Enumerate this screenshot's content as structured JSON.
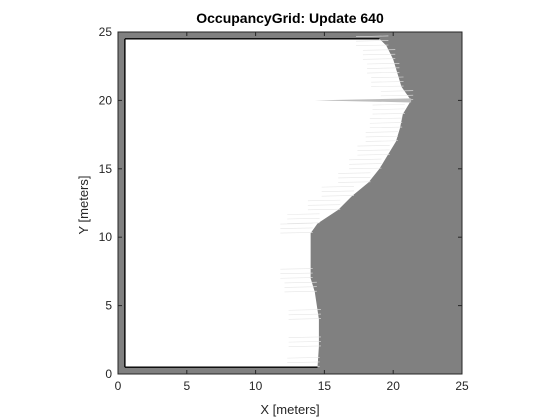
{
  "chart_data": {
    "type": "heatmap",
    "title": "OccupancyGrid: Update 640",
    "xlabel": "X [meters]",
    "ylabel": "Y [meters]",
    "xlim": [
      0,
      25
    ],
    "ylim": [
      0,
      25
    ],
    "xticks": [
      0,
      5,
      10,
      15,
      20,
      25
    ],
    "yticks": [
      0,
      5,
      10,
      15,
      20,
      25
    ],
    "colors": {
      "unknown": "#808080",
      "free": "#ffffff",
      "occupied": "#000000",
      "axis": "#262626"
    },
    "free_space_boundary": [
      {
        "y": 0.5,
        "x": 14.5
      },
      {
        "y": 2.0,
        "x": 14.6
      },
      {
        "y": 4.0,
        "x": 14.6
      },
      {
        "y": 6.0,
        "x": 14.3
      },
      {
        "y": 7.0,
        "x": 14.0
      },
      {
        "y": 10.3,
        "x": 14.0
      },
      {
        "y": 11.0,
        "x": 14.5
      },
      {
        "y": 12.0,
        "x": 16.0
      },
      {
        "y": 13.0,
        "x": 17.0
      },
      {
        "y": 14.0,
        "x": 18.2
      },
      {
        "y": 15.0,
        "x": 19.0
      },
      {
        "y": 16.0,
        "x": 19.6
      },
      {
        "y": 17.0,
        "x": 20.2
      },
      {
        "y": 18.0,
        "x": 20.5
      },
      {
        "y": 19.0,
        "x": 20.7
      },
      {
        "y": 20.0,
        "x": 21.3
      },
      {
        "y": 21.0,
        "x": 20.6
      },
      {
        "y": 22.0,
        "x": 20.3
      },
      {
        "y": 23.0,
        "x": 20.0
      },
      {
        "y": 24.0,
        "x": 19.5
      },
      {
        "y": 24.5,
        "x": 19.0
      }
    ],
    "walls": [
      {
        "x1": 0.5,
        "y1": 0.5,
        "x2": 14.5,
        "y2": 0.5
      },
      {
        "x1": 0.5,
        "y1": 0.5,
        "x2": 0.5,
        "y2": 24.5
      },
      {
        "x1": 0.5,
        "y1": 24.5,
        "x2": 19.0,
        "y2": 24.5
      }
    ]
  }
}
